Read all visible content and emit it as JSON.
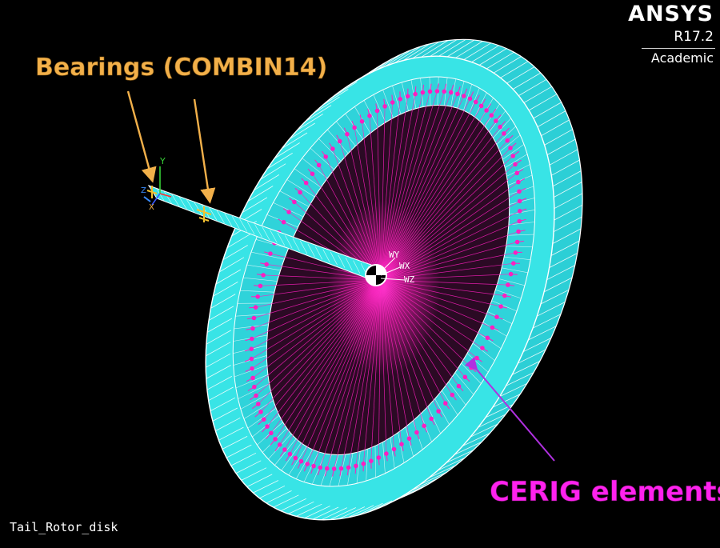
{
  "logo": {
    "name": "ANSYS",
    "version": "R17.2",
    "edition": "Academic"
  },
  "model_name": "Tail_Rotor_disk",
  "annotations": {
    "bearings": "Bearings (COMBIN14)",
    "cerig": "CERIG elements"
  },
  "triad": {
    "x": "X",
    "y": "Y",
    "z": "Z"
  },
  "workplane": {
    "wx": "WX",
    "wy": "WY",
    "wz": "WZ"
  },
  "colors": {
    "background": "#000000",
    "mesh_fill": "#33e0e0",
    "mesh_edge": "#ffffff",
    "cerig": "#ff1fc0",
    "bearing_label": "#f2b04a",
    "cerig_label": "#ff22ee",
    "cerig_arrow": "#b030e0"
  }
}
